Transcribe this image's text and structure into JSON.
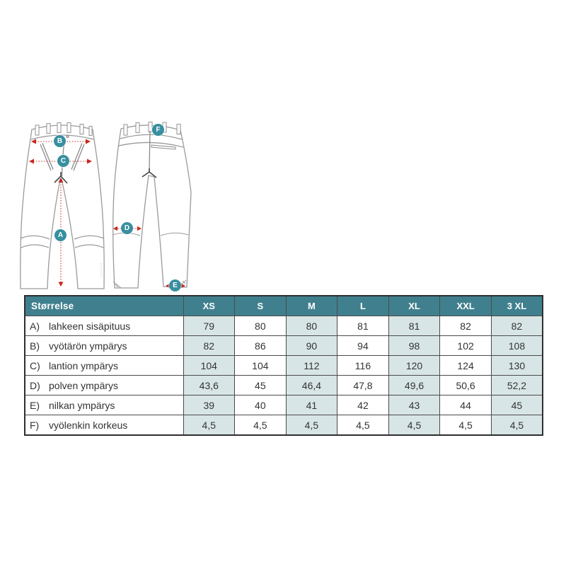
{
  "chart_data": {
    "type": "table",
    "title": "Størrelse",
    "columns": [
      "Størrelse",
      "XS",
      "S",
      "M",
      "L",
      "XL",
      "XXL",
      "3 XL"
    ],
    "rows": [
      {
        "key": "A)",
        "label": "lahkeen sisäpituus",
        "values": [
          "79",
          "80",
          "80",
          "81",
          "81",
          "82",
          "82"
        ]
      },
      {
        "key": "B)",
        "label": "vyötärön ympärys",
        "values": [
          "82",
          "86",
          "90",
          "94",
          "98",
          "102",
          "108"
        ]
      },
      {
        "key": "C)",
        "label": "lantion ympärys",
        "values": [
          "104",
          "104",
          "112",
          "116",
          "120",
          "124",
          "130"
        ]
      },
      {
        "key": "D)",
        "label": "polven ympärys",
        "values": [
          "43,6",
          "45",
          "46,4",
          "47,8",
          "49,6",
          "50,6",
          "52,2"
        ]
      },
      {
        "key": "E)",
        "label": "nilkan ympärys",
        "values": [
          "39",
          "40",
          "41",
          "42",
          "43",
          "44",
          "45"
        ]
      },
      {
        "key": "F)",
        "label": "vyölenkin korkeus",
        "values": [
          "4,5",
          "4,5",
          "4,5",
          "4,5",
          "4,5",
          "4,5",
          "4,5"
        ]
      }
    ],
    "shaded_columns": [
      "XS",
      "M",
      "XL",
      "3 XL"
    ],
    "markers": {
      "A": "A",
      "B": "B",
      "C": "C",
      "D": "D",
      "E": "E",
      "F": "F"
    },
    "layout_hints": {
      "diagram": "front and back pant schematic with red dotted measurement lines",
      "grid": "on"
    }
  },
  "colors": {
    "header_teal": "#40808e",
    "marker_teal": "#388fa0",
    "cell_shade": "#d8e5e6",
    "measure_red": "#c9281c",
    "outline_gray": "#9a9a9a",
    "grid_line": "#4a4a4a"
  }
}
